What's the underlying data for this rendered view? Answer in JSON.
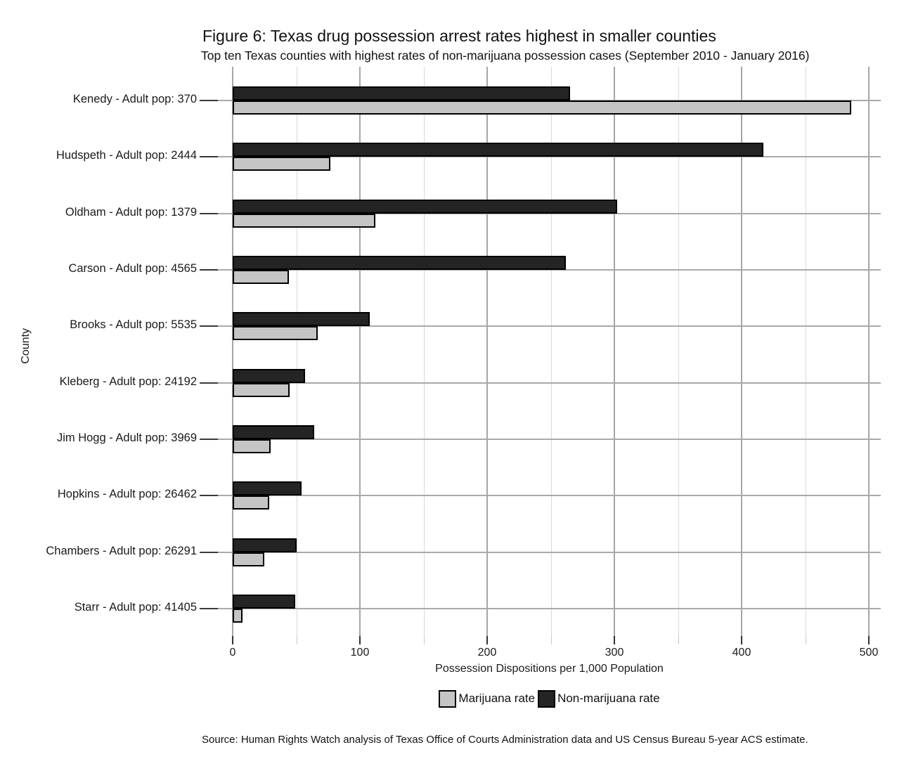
{
  "figure": {
    "source": "Source: Human Rights Watch analysis of Texas Office of Courts Administration data and US Census Bureau 5-year ACS estimate."
  },
  "chart_data": {
    "type": "bar",
    "orientation": "horizontal",
    "title": "Figure 6: Texas drug possession arrest rates highest in smaller counties",
    "subtitle": "Top ten Texas counties with highest rates of non-marijuana possession cases (September 2010 - January 2016)",
    "xlabel": "Possession Dispositions per 1,000 Population",
    "ylabel": "County",
    "xlim": [
      0,
      500
    ],
    "x_ticks": [
      0,
      100,
      200,
      300,
      400,
      500
    ],
    "x_minor_ticks": [
      50,
      150,
      250,
      350,
      450
    ],
    "grid": "vertical major+minor gridlines; horizontal gridline at each category",
    "legend_position": "bottom-center",
    "categories": [
      "Kenedy - Adult pop: 370",
      "Hudspeth - Adult pop: 2444",
      "Oldham - Adult pop: 1379",
      "Carson - Adult pop: 4565",
      "Brooks - Adult pop: 5535",
      "Kleberg - Adult pop: 24192",
      "Jim Hogg - Adult pop: 3969",
      "Hopkins - Adult pop: 26462",
      "Chambers - Adult pop: 26291",
      "Starr - Adult pop: 41405"
    ],
    "series": [
      {
        "name": "Marijuana rate",
        "color": "#c5c5c5",
        "values": [
          486,
          77,
          112,
          44,
          67,
          45,
          30,
          29,
          25,
          8
        ]
      },
      {
        "name": "Non-marijuana rate",
        "color": "#242424",
        "values": [
          265,
          417,
          302,
          262,
          108,
          57,
          64,
          54,
          50,
          49
        ]
      }
    ]
  },
  "colors": {
    "background": "#ffffff",
    "bar_border": "#000000",
    "grid_major": "#a6a6a6",
    "grid_minor": "#d8d8d8",
    "tick": "#333333",
    "text": "#1a1a1a"
  }
}
